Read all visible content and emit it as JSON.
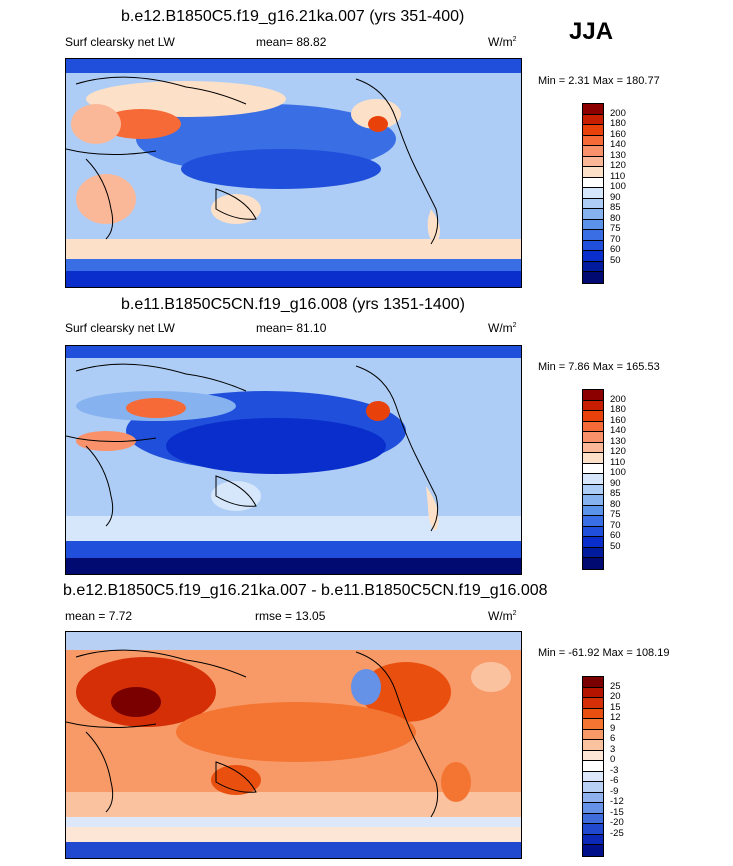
{
  "season": "JJA",
  "panels": [
    {
      "title": "b.e12.B1850C5.f19_g16.21ka.007 (yrs 351-400)",
      "variable": "Surf clearsky net LW",
      "mean_text": "mean=  88.82",
      "units": "W/m",
      "units_sup": "2",
      "minmax": "Min =   2.31 Max = 180.77",
      "colorbar": {
        "colors": [
          "#8c0000",
          "#c81e00",
          "#e8420a",
          "#f56a36",
          "#f9916a",
          "#fbb898",
          "#fde0c8",
          "#ffffff",
          "#d6e6fb",
          "#aecdf6",
          "#86b3f0",
          "#5c93ea",
          "#3a6ee4",
          "#1f4fdb",
          "#0a2ecb",
          "#001b9e",
          "#000a70"
        ],
        "labels": [
          "200",
          "180",
          "160",
          "140",
          "130",
          "120",
          "110",
          "100",
          "90",
          "85",
          "80",
          "75",
          "70",
          "60",
          "50"
        ]
      }
    },
    {
      "title": "b.e11.B1850C5CN.f19_g16.008 (yrs 1351-1400)",
      "variable": "Surf clearsky net LW",
      "mean_text": "mean=  81.10",
      "units": "W/m",
      "units_sup": "2",
      "minmax": "Min =   7.86 Max = 165.53",
      "colorbar": {
        "colors": [
          "#8c0000",
          "#c81e00",
          "#e8420a",
          "#f56a36",
          "#f9916a",
          "#fbb898",
          "#fde0c8",
          "#ffffff",
          "#d6e6fb",
          "#aecdf6",
          "#86b3f0",
          "#5c93ea",
          "#3a6ee4",
          "#1f4fdb",
          "#0a2ecb",
          "#001b9e",
          "#000a70"
        ],
        "labels": [
          "200",
          "180",
          "160",
          "140",
          "130",
          "120",
          "110",
          "100",
          "90",
          "85",
          "80",
          "75",
          "70",
          "60",
          "50"
        ]
      }
    },
    {
      "title": "b.e12.B1850C5.f19_g16.21ka.007 - b.e11.B1850C5CN.f19_g16.008",
      "mean_text": "mean =   7.72",
      "rmse_text": "rmse =  13.05",
      "units": "W/m",
      "units_sup": "2",
      "minmax": "Min = -61.92 Max = 108.19",
      "colorbar": {
        "colors": [
          "#7a0000",
          "#b41400",
          "#d42f06",
          "#e9500f",
          "#f47432",
          "#f89a68",
          "#fbc2a0",
          "#fde6d6",
          "#ffffff",
          "#dce8fa",
          "#b9d0f5",
          "#8fb2ee",
          "#6591e6",
          "#3f6ddc",
          "#2149cf",
          "#0c28b6",
          "#00108a"
        ],
        "labels": [
          "25",
          "20",
          "15",
          "12",
          "9",
          "6",
          "3",
          "0",
          "-3",
          "-6",
          "-9",
          "-12",
          "-15",
          "-20",
          "-25"
        ]
      }
    }
  ]
}
